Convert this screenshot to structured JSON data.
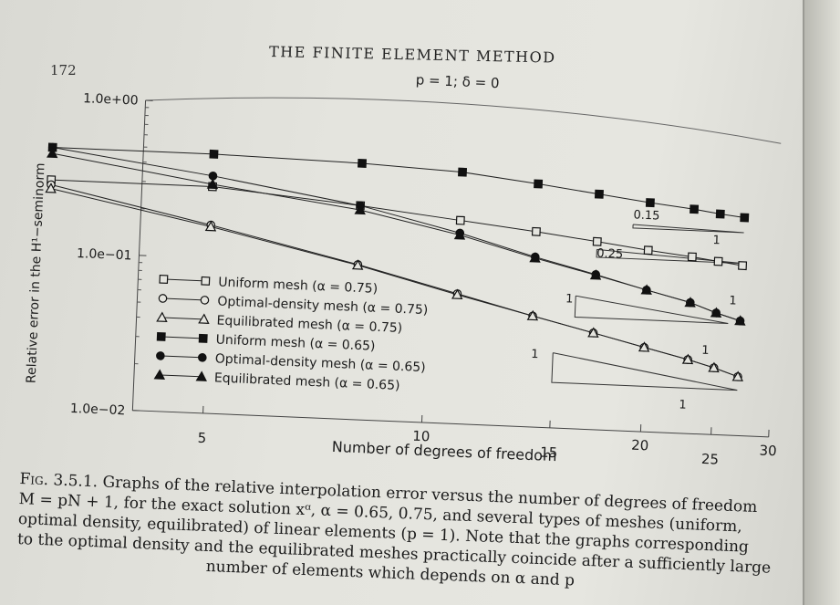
{
  "page": {
    "number": "172",
    "running_head": "THE FINITE ELEMENT METHOD"
  },
  "caption": {
    "label": "Fig. 3.5.1.",
    "line1": "Graphs of the relative interpolation error versus the number of degrees of freedom",
    "line2": "M = pN + 1, for the exact solution xᵅ, α = 0.65, 0.75, and several types of meshes (uniform,",
    "line3": "optimal density, equilibrated) of linear elements (p = 1). Note that the graphs corresponding",
    "line4": "to the optimal density and the equilibrated meshes practically coincide after a sufficiently large",
    "line5": "number of elements which depends on α and p"
  },
  "chart_data": {
    "type": "line",
    "title": "p = 1;  δ = 0",
    "xlabel": "Number of degrees of freedom",
    "ylabel": "Relative error in the H¹−seminorm",
    "x_scale": "log",
    "y_scale": "log",
    "xlim": [
      4,
      30
    ],
    "ylim": [
      0.01,
      1.0
    ],
    "x_ticks": [
      5,
      10,
      15,
      20,
      25,
      30
    ],
    "x_tick_labels": [
      "5",
      "10",
      "15",
      "20",
      "25",
      "30"
    ],
    "y_ticks": [
      1.0,
      0.1,
      0.01
    ],
    "y_tick_labels": [
      "1.0e+00",
      "1.0e−01",
      "1.0e−02"
    ],
    "legend_position": "lower-left",
    "series": [
      {
        "name": "Uniform mesh (α = 0.75)",
        "marker": "open-square",
        "filled": false,
        "x": [
          3,
          5,
          8,
          11,
          14,
          17,
          20,
          23,
          25,
          27
        ],
        "y": [
          0.29,
          0.29,
          0.24,
          0.205,
          0.182,
          0.163,
          0.148,
          0.138,
          0.131,
          0.125
        ]
      },
      {
        "name": "Optimal-density mesh (α = 0.75)",
        "marker": "open-circle",
        "filled": false,
        "x": [
          3,
          5,
          8,
          11,
          14,
          17,
          20,
          23,
          25,
          27
        ],
        "y": [
          0.27,
          0.164,
          0.1,
          0.069,
          0.052,
          0.042,
          0.035,
          0.03,
          0.027,
          0.024
        ]
      },
      {
        "name": "Equilibrated mesh (α = 0.75)",
        "marker": "open-triangle",
        "filled": false,
        "x": [
          3,
          5,
          8,
          11,
          14,
          17,
          20,
          23,
          25,
          27
        ],
        "y": [
          0.255,
          0.16,
          0.099,
          0.068,
          0.052,
          0.042,
          0.035,
          0.03,
          0.027,
          0.024
        ]
      },
      {
        "name": "Uniform mesh (α = 0.65)",
        "marker": "filled-square",
        "filled": true,
        "x": [
          3,
          5,
          8,
          11,
          14,
          17,
          20,
          23,
          25,
          27
        ],
        "y": [
          0.47,
          0.47,
          0.45,
          0.42,
          0.37,
          0.33,
          0.3,
          0.28,
          0.265,
          0.255
        ]
      },
      {
        "name": "Optimal-density mesh (α = 0.65)",
        "marker": "filled-circle",
        "filled": true,
        "x": [
          3,
          5,
          8,
          11,
          14,
          17,
          20,
          23,
          25,
          27
        ],
        "y": [
          0.47,
          0.34,
          0.24,
          0.17,
          0.125,
          0.1,
          0.082,
          0.07,
          0.061,
          0.055
        ]
      },
      {
        "name": "Equilibrated mesh (α = 0.65)",
        "marker": "filled-triangle",
        "filled": true,
        "x": [
          3,
          5,
          8,
          11,
          14,
          17,
          20,
          23,
          25,
          27
        ],
        "y": [
          0.43,
          0.3,
          0.225,
          0.165,
          0.123,
          0.099,
          0.082,
          0.07,
          0.061,
          0.055
        ]
      }
    ],
    "annotations": [
      {
        "text": "0.15",
        "x": 19,
        "y": 0.235
      },
      {
        "text": "0.25",
        "x": 17,
        "y": 0.13
      },
      {
        "text": "1",
        "x": 24.5,
        "y": 0.17
      },
      {
        "text": "1",
        "x": 26,
        "y": 0.07
      },
      {
        "text": "1",
        "x": 15.5,
        "y": 0.065
      },
      {
        "text": "1",
        "x": 24,
        "y": 0.033
      },
      {
        "text": "1",
        "x": 14,
        "y": 0.028
      },
      {
        "text": "1",
        "x": 22.5,
        "y": 0.0145
      }
    ],
    "slope_triangles": [
      {
        "x1": 19,
        "x2": 27,
        "y_start": 0.215,
        "slope": -0.15
      },
      {
        "x1": 17,
        "x2": 27,
        "y_start": 0.145,
        "slope": -0.25
      },
      {
        "x1": 16,
        "x2": 26,
        "y_start": 0.072,
        "slope": -0.65
      },
      {
        "x1": 15,
        "x2": 27,
        "y_start": 0.0305,
        "slope": -0.75
      }
    ]
  }
}
